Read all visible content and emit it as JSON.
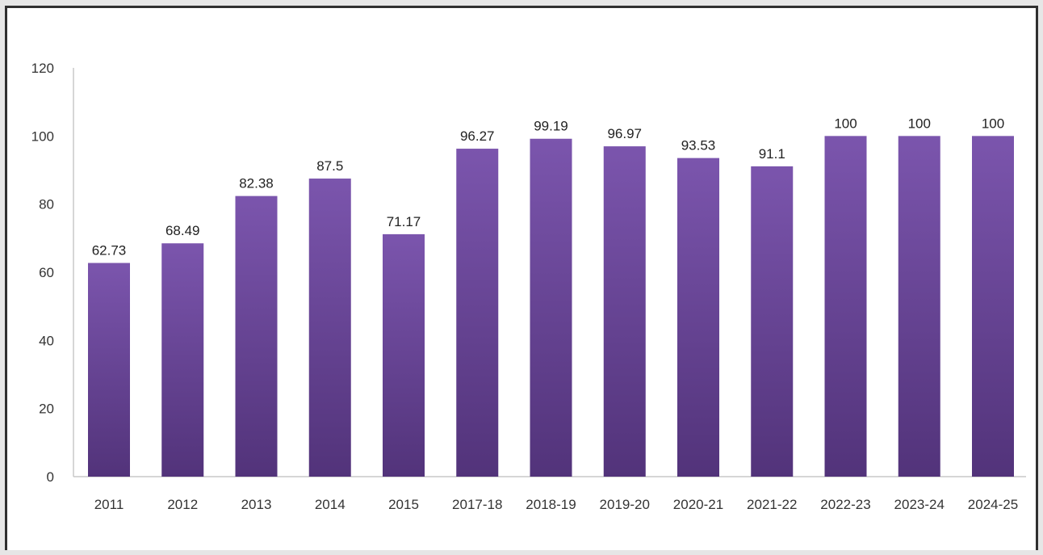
{
  "chart_data": {
    "type": "bar",
    "categories": [
      "2011",
      "2012",
      "2013",
      "2014",
      "2015",
      "2017-18",
      "2018-19",
      "2019-20",
      "2020-21",
      "2021-22",
      "2022-23",
      "2023-24",
      "2024-25"
    ],
    "values": [
      62.73,
      68.49,
      82.38,
      87.5,
      71.17,
      96.27,
      99.19,
      96.97,
      93.53,
      91.1,
      100,
      100,
      100
    ],
    "data_labels": [
      "62.73",
      "68.49",
      "82.38",
      "87.5",
      "71.17",
      "96.27",
      "99.19",
      "96.97",
      "93.53",
      "91.1",
      "100",
      "100",
      "100"
    ],
    "y_ticks": [
      "0",
      "20",
      "40",
      "60",
      "80",
      "100",
      "120"
    ],
    "ylim": [
      0,
      120
    ],
    "title": "",
    "xlabel": "",
    "ylabel": "",
    "grid": false,
    "legend": "none",
    "colors": {
      "bar_top": "#7b55ad",
      "bar_bottom": "#52337a",
      "axis": "#c8c8c8",
      "frame": "#2f2f2f",
      "page_background": "#e6e6e6"
    }
  }
}
